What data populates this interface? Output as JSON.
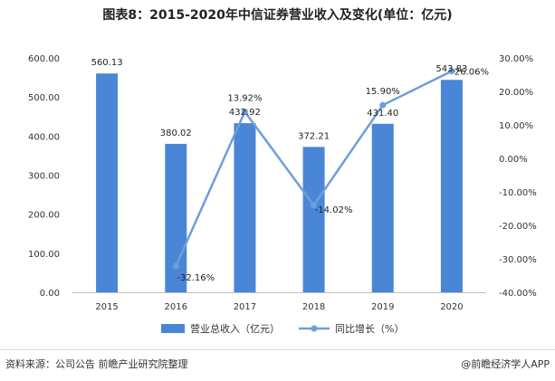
{
  "chart_data": {
    "type": "bar+line",
    "title": "图表8：2015-2020年中信证券营业收入及变化(单位：亿元)",
    "categories": [
      "2015",
      "2016",
      "2017",
      "2018",
      "2019",
      "2020"
    ],
    "bar_series": {
      "name": "营业总收入（亿元）",
      "values": [
        560.13,
        380.02,
        432.92,
        372.21,
        431.4,
        543.83
      ],
      "labels": [
        "560.13",
        "380.02",
        "432.92",
        "372.21",
        "431.40",
        "543.83"
      ],
      "color": "#4a86d6"
    },
    "line_series": {
      "name": "同比增长（%）",
      "values": [
        null,
        -32.16,
        13.92,
        -14.02,
        15.9,
        26.06
      ],
      "labels": [
        "",
        "-32.16%",
        "13.92%",
        "-14.02%",
        "15.90%",
        "26.06%"
      ],
      "color": "#6d9edc"
    },
    "y_left": {
      "min": 0,
      "max": 600,
      "ticks": [
        "0.00",
        "100.00",
        "200.00",
        "300.00",
        "400.00",
        "500.00",
        "600.00"
      ]
    },
    "y_right": {
      "min": -40,
      "max": 30,
      "ticks": [
        "-40.00%",
        "-30.00%",
        "-20.00%",
        "-10.00%",
        "0.00%",
        "10.00%",
        "20.00%",
        "30.00%"
      ]
    }
  },
  "footer": {
    "source": "资料来源：公司公告 前瞻产业研究院整理",
    "brand": "@前瞻经济学人APP"
  }
}
